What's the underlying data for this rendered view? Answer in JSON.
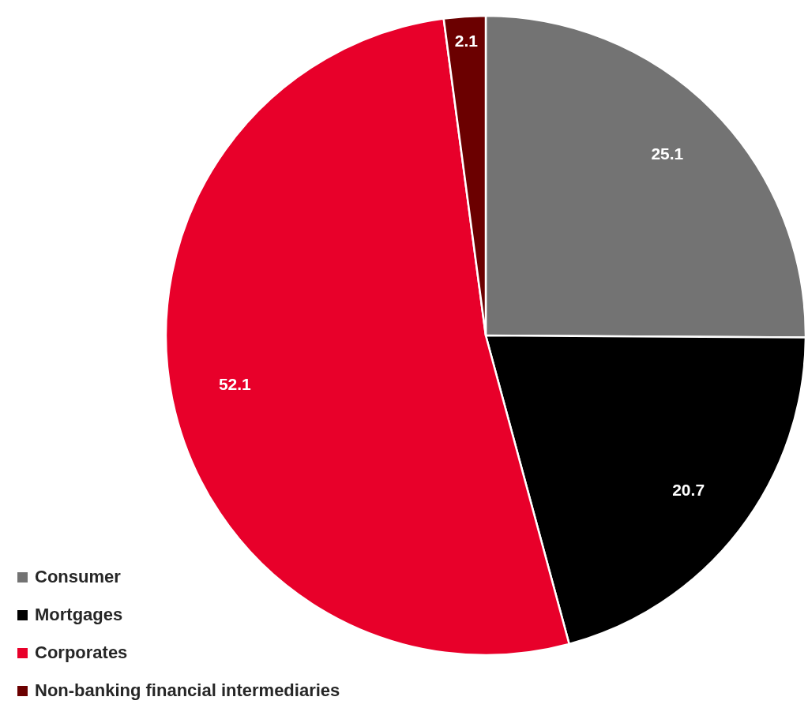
{
  "chart_data": {
    "type": "pie",
    "categories": [
      "Consumer",
      "Mortgages",
      "Corporates",
      "Non-banking financial intermediaries"
    ],
    "values": [
      25.1,
      20.7,
      52.1,
      2.1
    ],
    "colors": [
      "#737373",
      "#000000",
      "#e8002a",
      "#6b0000"
    ],
    "data_labels": true,
    "legend": "bottom left"
  }
}
